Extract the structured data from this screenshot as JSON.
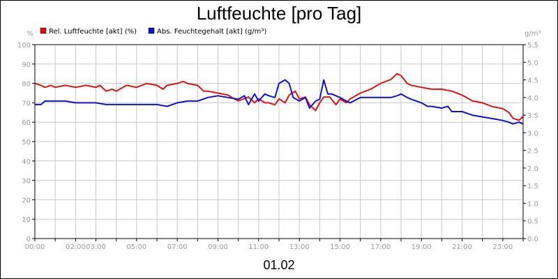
{
  "chart_data": {
    "type": "line",
    "title": "Luftfeuchte [pro Tag]",
    "xlabel": "01.02",
    "y_unit_left": "%",
    "y_unit_right": "g/m³",
    "ylim_left": [
      0,
      100
    ],
    "ylim_right": [
      0,
      5.5
    ],
    "xlim_hours": [
      0,
      24
    ],
    "grid": true,
    "legend_position": "top-left",
    "x_ticks": [
      "00:00",
      "02:00",
      "03:00",
      "05:00",
      "07:00",
      "09:00",
      "11:00",
      "13:00",
      "15:00",
      "17:00",
      "19:00",
      "21:00",
      "23:00"
    ],
    "x_tick_hours": [
      0,
      2,
      3,
      5,
      7,
      9,
      11,
      13,
      15,
      17,
      19,
      21,
      23
    ],
    "y_ticks_left": [
      "0",
      "10",
      "20",
      "30",
      "40",
      "50",
      "60",
      "70",
      "80",
      "90",
      "100"
    ],
    "y_ticks_right": [
      "0.0",
      "0.5",
      "1.0",
      "1.5",
      "2.0",
      "2.5",
      "3.0",
      "3.5",
      "4.0",
      "4.5",
      "5.0",
      "5.5"
    ],
    "series": [
      {
        "name": "Rel. Luftfeuchte [akt] (%)",
        "axis": "left",
        "color": "#dd1111",
        "x": [
          0,
          0.3,
          0.5,
          0.8,
          1,
          1.5,
          2,
          2.5,
          3,
          3.2,
          3.5,
          3.8,
          4,
          4.5,
          5,
          5.5,
          6,
          6.3,
          6.5,
          7,
          7.3,
          7.5,
          8,
          8.3,
          8.5,
          9,
          9.5,
          9.8,
          10,
          10.5,
          10.8,
          11,
          11.3,
          11.5,
          11.8,
          12,
          12.3,
          12.5,
          12.8,
          13,
          13.3,
          13.5,
          13.8,
          14,
          14.2,
          14.5,
          14.8,
          15,
          15.3,
          15.5,
          16,
          16.5,
          17,
          17.5,
          17.8,
          18,
          18.3,
          18.5,
          19,
          19.5,
          20,
          20.5,
          21,
          21.5,
          22,
          22.5,
          23,
          23.3,
          23.5,
          23.8,
          24
        ],
        "values": [
          80,
          79,
          78,
          79,
          78,
          79,
          78,
          79,
          78,
          79,
          76,
          77,
          76,
          79,
          78,
          80,
          79,
          77,
          79,
          80,
          81,
          80,
          79,
          76,
          76,
          75,
          74,
          72,
          71,
          73,
          70,
          72,
          70,
          70,
          69,
          72,
          70,
          74,
          76,
          72,
          73,
          69,
          66,
          70,
          73,
          73,
          69,
          72,
          70,
          72,
          75,
          77,
          80,
          82,
          85,
          84,
          80,
          79,
          78,
          77,
          77,
          76,
          74,
          71,
          70,
          68,
          67,
          65,
          62,
          61,
          63
        ]
      },
      {
        "name": "Abs. Feuchtegehalt [akt] (g/m³)",
        "axis": "right",
        "color": "#1111cc",
        "x": [
          0,
          0.3,
          0.5,
          1,
          1.5,
          2,
          2.5,
          3,
          3.5,
          4,
          4.5,
          5,
          5.5,
          6,
          6.5,
          7,
          7.5,
          8,
          8.5,
          9,
          9.5,
          10,
          10.3,
          10.5,
          10.8,
          11,
          11.3,
          11.5,
          11.8,
          12,
          12.3,
          12.5,
          12.7,
          13,
          13.3,
          13.5,
          13.8,
          14,
          14.2,
          14.4,
          14.6,
          15,
          15.3,
          15.5,
          16,
          16.5,
          17,
          17.5,
          17.8,
          18,
          18.3,
          18.5,
          19,
          19.3,
          19.5,
          20,
          20.3,
          20.5,
          21,
          21.5,
          22,
          22.5,
          23,
          23.3,
          23.5,
          23.8,
          24
        ],
        "values": [
          3.8,
          3.8,
          3.9,
          3.9,
          3.9,
          3.85,
          3.85,
          3.85,
          3.8,
          3.8,
          3.8,
          3.8,
          3.8,
          3.8,
          3.75,
          3.85,
          3.9,
          3.9,
          4.0,
          4.05,
          4.0,
          3.95,
          4.05,
          3.8,
          4.1,
          3.9,
          4.1,
          4.05,
          4.0,
          4.4,
          4.5,
          4.4,
          4.0,
          3.9,
          4.0,
          3.7,
          3.9,
          3.95,
          4.5,
          4.1,
          4.1,
          4.0,
          3.9,
          3.85,
          4.0,
          4.0,
          4.0,
          4.0,
          4.05,
          4.1,
          4.0,
          3.95,
          3.85,
          3.75,
          3.75,
          3.7,
          3.75,
          3.6,
          3.6,
          3.5,
          3.45,
          3.4,
          3.35,
          3.3,
          3.25,
          3.3,
          3.25
        ]
      }
    ]
  }
}
